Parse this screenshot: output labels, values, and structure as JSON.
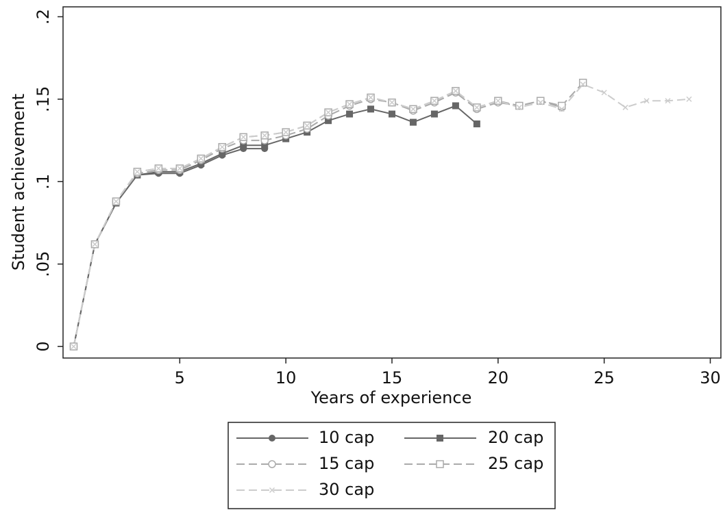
{
  "chart_data": {
    "type": "line",
    "x_label": "Years of experience",
    "y_label": "Student achievement",
    "x": [
      0,
      1,
      2,
      3,
      4,
      5,
      6,
      7,
      8,
      9,
      10,
      11,
      12,
      13,
      14,
      15,
      16,
      17,
      18,
      19,
      20,
      21,
      22,
      23,
      24,
      25,
      26,
      27,
      28,
      29
    ],
    "xlim": [
      -0.5,
      30.5
    ],
    "xticks": [
      5,
      10,
      15,
      20,
      25,
      30
    ],
    "ylim": [
      -0.007,
      0.206
    ],
    "yticks": [
      0,
      {
        "value": 0.05,
        "label": ".05"
      },
      {
        "value": 0.1,
        "label": ".1"
      },
      {
        "value": 0.15,
        "label": ".15"
      },
      {
        "value": 0.2,
        "label": ".2"
      }
    ],
    "legend_position": "bottom",
    "series": [
      {
        "name": "10 cap",
        "color": "#666666",
        "dashed": false,
        "marker": "filled-circle",
        "values": [
          0,
          0.062,
          0.087,
          0.104,
          0.105,
          0.105,
          0.11,
          0.116,
          0.12,
          0.12,
          null,
          null,
          null,
          null,
          null,
          null,
          null,
          null,
          null,
          null,
          null,
          null,
          null,
          null,
          null,
          null,
          null,
          null,
          null,
          null
        ]
      },
      {
        "name": "20 cap",
        "color": "#666666",
        "dashed": false,
        "marker": "filled-square",
        "values": [
          0,
          0.062,
          0.087,
          0.104,
          0.106,
          0.106,
          0.111,
          0.117,
          0.122,
          0.122,
          0.126,
          0.13,
          0.137,
          0.141,
          0.144,
          0.141,
          0.136,
          0.141,
          0.146,
          0.135,
          null,
          null,
          null,
          null,
          null,
          null,
          null,
          null,
          null,
          null
        ]
      },
      {
        "name": "15 cap",
        "color": "#aaaaaa",
        "dashed": true,
        "marker": "hollow-circle",
        "values": [
          0,
          0.062,
          0.088,
          0.105,
          0.107,
          0.107,
          0.113,
          0.12,
          0.125,
          0.125,
          0.128,
          0.132,
          0.14,
          0.146,
          0.15,
          0.148,
          0.143,
          0.148,
          0.154,
          0.144,
          0.148,
          0.146,
          0.149,
          0.145,
          null,
          null,
          null,
          null,
          null,
          null
        ]
      },
      {
        "name": "25 cap",
        "color": "#aaaaaa",
        "dashed": true,
        "marker": "hollow-square",
        "values": [
          0,
          0.062,
          0.088,
          0.106,
          0.108,
          0.108,
          0.114,
          0.121,
          0.127,
          0.128,
          0.13,
          0.134,
          0.142,
          0.147,
          0.151,
          0.148,
          0.144,
          0.149,
          0.155,
          0.145,
          0.149,
          0.146,
          0.149,
          0.146,
          0.16,
          null,
          null,
          null,
          null,
          null
        ]
      },
      {
        "name": "30 cap",
        "color": "#cccccc",
        "dashed": true,
        "marker": "x",
        "values": [
          0,
          0.062,
          0.088,
          0.106,
          0.108,
          0.108,
          0.114,
          0.121,
          0.127,
          0.128,
          0.13,
          0.134,
          0.142,
          0.147,
          0.151,
          0.148,
          0.144,
          0.149,
          0.155,
          0.145,
          0.149,
          0.145,
          0.148,
          0.144,
          0.159,
          0.154,
          0.145,
          0.149,
          0.149,
          0.15
        ]
      }
    ]
  }
}
